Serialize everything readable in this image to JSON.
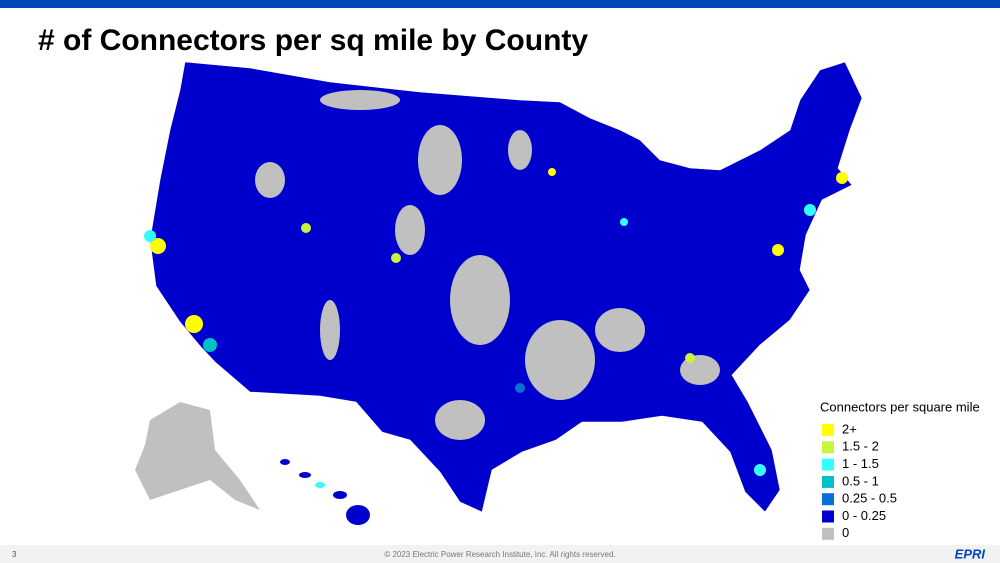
{
  "header": {
    "title": "# of Connectors per sq mile by County"
  },
  "legend": {
    "title": "Connectors per square mile",
    "items": [
      {
        "label": "2+",
        "color": "#ffff00"
      },
      {
        "label": "1.5 - 2",
        "color": "#c8f53c"
      },
      {
        "label": "1 - 1.5",
        "color": "#33ffff"
      },
      {
        "label": "0.5 - 1",
        "color": "#00c0c8"
      },
      {
        "label": "0.25 - 0.5",
        "color": "#0a6fd6"
      },
      {
        "label": "0 - 0.25",
        "color": "#0000cc"
      },
      {
        "label": "0",
        "color": "#c0c0c0"
      }
    ]
  },
  "footer": {
    "page": "3",
    "copyright": "© 2023 Electric Power Research Institute, Inc. All rights reserved.",
    "logo": "EPRI"
  }
}
